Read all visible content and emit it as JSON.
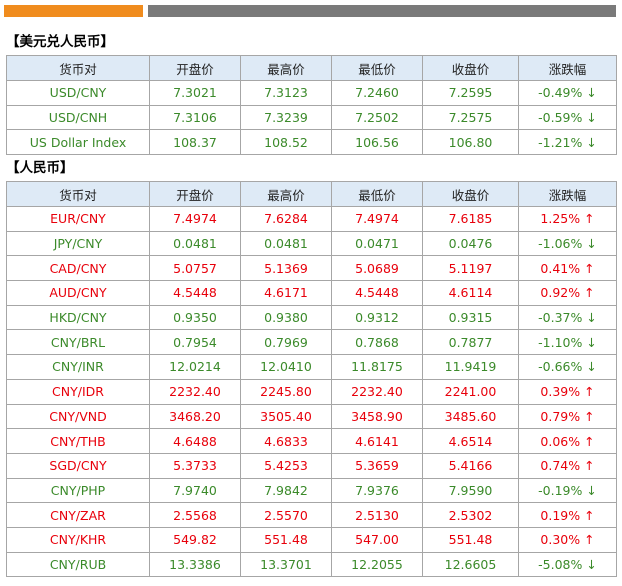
{
  "colors": {
    "accent_orange": "#f08c1e",
    "divider_gray": "#7a7a7a",
    "header_bg": "#deeaf6",
    "up": "#e8000b",
    "down": "#3b8a2a"
  },
  "usd_section": {
    "title": "【美元兑人民币】",
    "headers": [
      "货币对",
      "开盘价",
      "最高价",
      "最低价",
      "收盘价",
      "涨跌幅"
    ],
    "rows": [
      {
        "pair": "USD/CNY",
        "open": "7.3021",
        "high": "7.3123",
        "low": "7.2460",
        "close": "7.2595",
        "change": "-0.49%",
        "dir": "down",
        "arrow": "↓"
      },
      {
        "pair": "USD/CNH",
        "open": "7.3106",
        "high": "7.3239",
        "low": "7.2502",
        "close": "7.2575",
        "change": "-0.59%",
        "dir": "down",
        "arrow": "↓"
      },
      {
        "pair": "US Dollar Index",
        "open": "108.37",
        "high": "108.52",
        "low": "106.56",
        "close": "106.80",
        "change": "-1.21%",
        "dir": "down",
        "arrow": "↓"
      }
    ]
  },
  "rmb_section": {
    "title": "【人民币】",
    "headers": [
      "货币对",
      "开盘价",
      "最高价",
      "最低价",
      "收盘价",
      "涨跌幅"
    ],
    "rows": [
      {
        "pair": "EUR/CNY",
        "open": "7.4974",
        "high": "7.6284",
        "low": "7.4974",
        "close": "7.6185",
        "change": "1.25%",
        "dir": "up",
        "arrow": "↑"
      },
      {
        "pair": "JPY/CNY",
        "open": "0.0481",
        "high": "0.0481",
        "low": "0.0471",
        "close": "0.0476",
        "change": "-1.06%",
        "dir": "down",
        "arrow": "↓"
      },
      {
        "pair": "CAD/CNY",
        "open": "5.0757",
        "high": "5.1369",
        "low": "5.0689",
        "close": "5.1197",
        "change": "0.41%",
        "dir": "up",
        "arrow": "↑"
      },
      {
        "pair": "AUD/CNY",
        "open": "4.5448",
        "high": "4.6171",
        "low": "4.5448",
        "close": "4.6114",
        "change": "0.92%",
        "dir": "up",
        "arrow": "↑"
      },
      {
        "pair": "HKD/CNY",
        "open": "0.9350",
        "high": "0.9380",
        "low": "0.9312",
        "close": "0.9315",
        "change": "-0.37%",
        "dir": "down",
        "arrow": "↓"
      },
      {
        "pair": "CNY/BRL",
        "open": "0.7954",
        "high": "0.7969",
        "low": "0.7868",
        "close": "0.7877",
        "change": "-1.10%",
        "dir": "down",
        "arrow": "↓"
      },
      {
        "pair": "CNY/INR",
        "open": "12.0214",
        "high": "12.0410",
        "low": "11.8175",
        "close": "11.9419",
        "change": "-0.66%",
        "dir": "down",
        "arrow": "↓"
      },
      {
        "pair": "CNY/IDR",
        "open": "2232.40",
        "high": "2245.80",
        "low": "2232.40",
        "close": "2241.00",
        "change": "0.39%",
        "dir": "up",
        "arrow": "↑"
      },
      {
        "pair": "CNY/VND",
        "open": "3468.20",
        "high": "3505.40",
        "low": "3458.90",
        "close": "3485.60",
        "change": "0.79%",
        "dir": "up",
        "arrow": "↑"
      },
      {
        "pair": "CNY/THB",
        "open": "4.6488",
        "high": "4.6833",
        "low": "4.6141",
        "close": "4.6514",
        "change": "0.06%",
        "dir": "up",
        "arrow": "↑"
      },
      {
        "pair": "SGD/CNY",
        "open": "5.3733",
        "high": "5.4253",
        "low": "5.3659",
        "close": "5.4166",
        "change": "0.74%",
        "dir": "up",
        "arrow": "↑"
      },
      {
        "pair": "CNY/PHP",
        "open": "7.9740",
        "high": "7.9842",
        "low": "7.9376",
        "close": "7.9590",
        "change": "-0.19%",
        "dir": "down",
        "arrow": "↓"
      },
      {
        "pair": "CNY/ZAR",
        "open": "2.5568",
        "high": "2.5570",
        "low": "2.5130",
        "close": "2.5302",
        "change": "0.19%",
        "dir": "up",
        "arrow": "↑"
      },
      {
        "pair": "CNY/KHR",
        "open": "549.82",
        "high": "551.48",
        "low": "547.00",
        "close": "551.48",
        "change": "0.30%",
        "dir": "up",
        "arrow": "↑"
      },
      {
        "pair": "CNY/RUB",
        "open": "13.3386",
        "high": "13.3701",
        "low": "12.2055",
        "close": "12.6605",
        "change": "-5.08%",
        "dir": "down",
        "arrow": "↓"
      }
    ]
  }
}
